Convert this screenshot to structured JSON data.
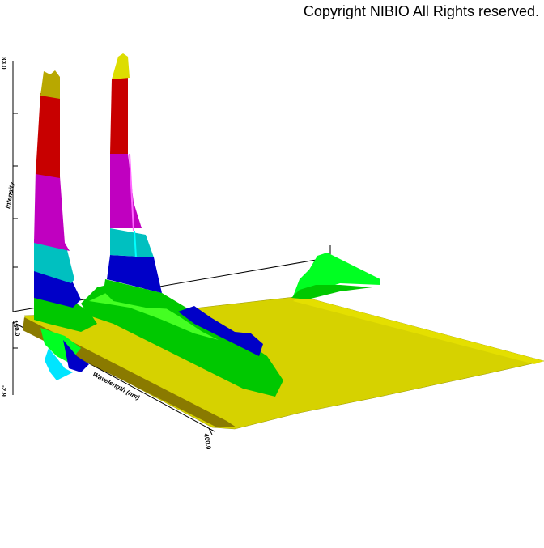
{
  "copyright": "Copyright NIBIO All Rights reserved.",
  "chart_data": {
    "type": "surface3d",
    "title": "",
    "xlabel": "Wavelength (nm)",
    "ylabel": "",
    "zlabel": "Intensity",
    "x_ticks": [
      "180.0",
      "400.0"
    ],
    "z_ticks": [
      "-2.9",
      "33.0"
    ],
    "xlim": [
      180.0,
      400.0
    ],
    "zlim": [
      -2.9,
      33.0
    ],
    "grid": false,
    "legend": "none",
    "color_bands": [
      {
        "from": -2.9,
        "to": 0,
        "color": "#00e5ff"
      },
      {
        "from": 0,
        "to": 2,
        "color": "#ddd800"
      },
      {
        "from": 2,
        "to": 5,
        "color": "#00c800"
      },
      {
        "from": 5,
        "to": 8,
        "color": "#00ff22"
      },
      {
        "from": 8,
        "to": 12,
        "color": "#0000c8"
      },
      {
        "from": 12,
        "to": 15,
        "color": "#00c0c0"
      },
      {
        "from": 15,
        "to": 22,
        "color": "#c000c0"
      },
      {
        "from": 22,
        "to": 30,
        "color": "#c80000"
      },
      {
        "from": 30,
        "to": 33,
        "color": "#c8b800"
      }
    ],
    "spectra": [
      {
        "x": [
          180,
          190,
          200,
          210,
          220,
          230,
          240,
          260,
          280,
          300,
          320,
          340,
          360,
          380,
          400
        ],
        "z": [
          33.0,
          30.0,
          20.0,
          10.0,
          5.0,
          -2.5,
          -1.0,
          3.0,
          2.0,
          1.0,
          0.5,
          0.5,
          0.3,
          0.3,
          0.2
        ]
      },
      {
        "x": [
          180,
          190,
          200,
          210,
          220,
          230,
          240,
          260,
          280,
          300,
          320,
          340,
          360,
          380,
          400
        ],
        "z": [
          2.0,
          12.0,
          33.0,
          31.0,
          18.0,
          12.0,
          9.0,
          8.0,
          6.0,
          5.0,
          3.0,
          2.0,
          1.0,
          0.5,
          0.3
        ]
      }
    ]
  }
}
